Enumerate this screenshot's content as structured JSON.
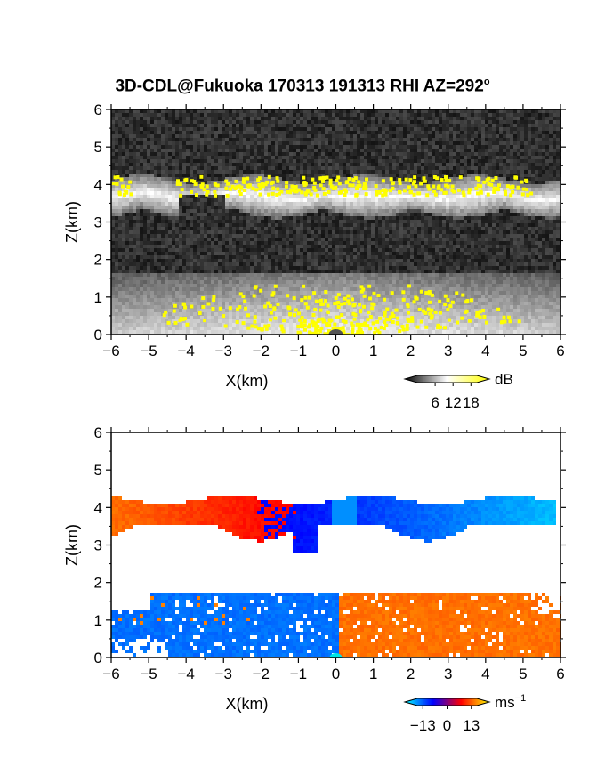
{
  "title": "3D-CDL@Fukuoka 170313 191313 RHI AZ=292",
  "title_superscript": "o",
  "chart_data": [
    {
      "type": "heatmap",
      "panel": "reflectivity",
      "xlabel": "X(km)",
      "ylabel": "Z(km)",
      "xlim": [
        -6,
        6
      ],
      "ylim": [
        0,
        6
      ],
      "x_ticks": [
        "−6",
        "−5",
        "−4",
        "−3",
        "−2",
        "−1",
        "0",
        "1",
        "2",
        "3",
        "4",
        "5",
        "6"
      ],
      "y_ticks": [
        "0",
        "1",
        "2",
        "3",
        "4",
        "5",
        "6"
      ],
      "colorbar": {
        "unit": "dB",
        "ticks": [
          "6",
          "12",
          "18"
        ],
        "range": [
          0,
          20
        ],
        "colors": [
          "#000000",
          "#ffffff",
          "#ffff00"
        ]
      },
      "features": [
        {
          "name": "cloud layer",
          "z_range_km": [
            3.1,
            4.3
          ],
          "value_dB": "10-18+"
        },
        {
          "name": "boundary layer",
          "z_range_km": [
            0,
            1.7
          ],
          "value_dB": "8-18+"
        }
      ]
    },
    {
      "type": "heatmap",
      "panel": "doppler velocity",
      "xlabel": "X(km)",
      "ylabel": "Z(km)",
      "xlim": [
        -6,
        6
      ],
      "ylim": [
        0,
        6
      ],
      "x_ticks": [
        "−6",
        "−5",
        "−4",
        "−3",
        "−2",
        "−1",
        "0",
        "1",
        "2",
        "3",
        "4",
        "5",
        "6"
      ],
      "y_ticks": [
        "0",
        "1",
        "2",
        "3",
        "4",
        "5",
        "6"
      ],
      "colorbar": {
        "unit": "ms",
        "unit_superscript": "−1",
        "ticks": [
          "−13",
          "0",
          "13"
        ],
        "range": [
          -16,
          16
        ],
        "colors": [
          "#00ffff",
          "#0000ff",
          "#ff0000",
          "#ffff00"
        ]
      },
      "features": [
        {
          "name": "cloud layer",
          "z_range_km": [
            2.8,
            4.4
          ],
          "x_range_km": [
            -6,
            6
          ],
          "velocity_ms": [
            8,
            -11
          ]
        },
        {
          "name": "boundary layer",
          "z_range_km": [
            0,
            1.8
          ],
          "x_range_km": [
            -6,
            6
          ],
          "velocity_ms": [
            -7,
            7
          ]
        }
      ]
    }
  ]
}
